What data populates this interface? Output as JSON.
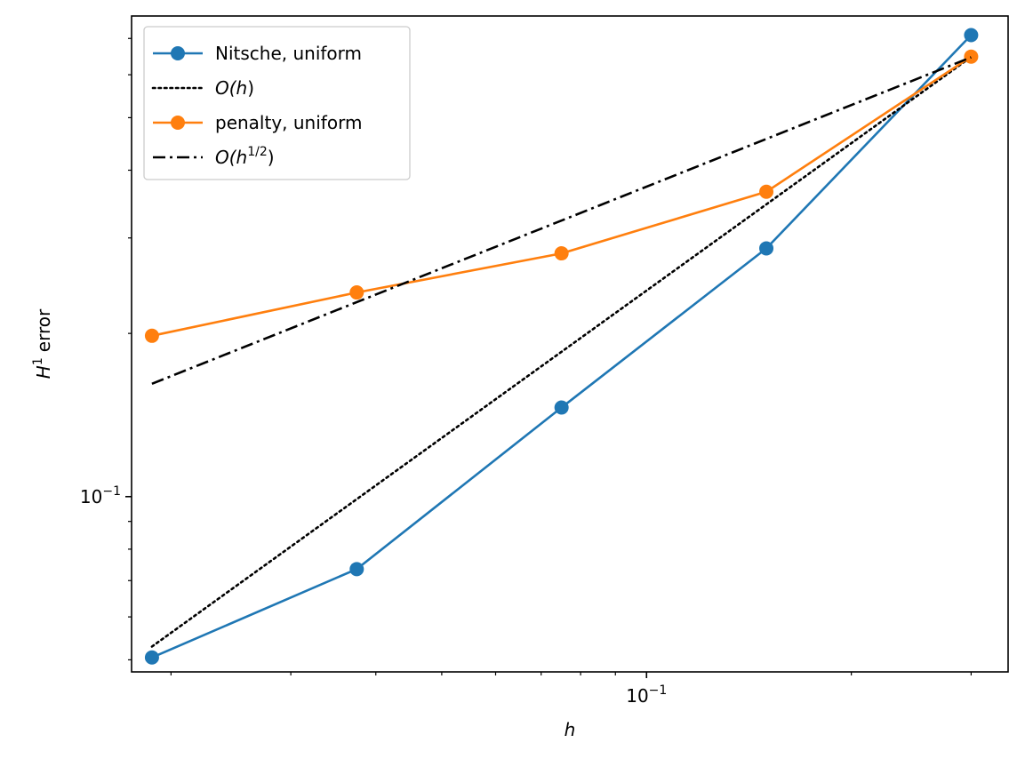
{
  "chart_data": {
    "type": "line",
    "xlabel": "h",
    "ylabel": "error",
    "ylabel_prefix": "H",
    "ylabel_sup": "1",
    "xscale": "log",
    "yscale": "log",
    "xlim": [
      0.0175,
      0.34
    ],
    "ylim": [
      0.0475,
      0.77
    ],
    "x_major_ticks": [
      {
        "value": 0.1,
        "base": "10",
        "exp": "−1"
      }
    ],
    "x_minor_ticks": [
      0.02,
      0.03,
      0.04,
      0.05,
      0.06,
      0.07,
      0.08,
      0.09,
      0.2,
      0.3
    ],
    "y_major_ticks": [
      {
        "value": 0.1,
        "base": "10",
        "exp": "−1"
      }
    ],
    "y_minor_ticks": [
      0.05,
      0.06,
      0.07,
      0.08,
      0.09,
      0.2,
      0.3,
      0.4,
      0.5,
      0.6,
      0.7
    ],
    "legend_position": "top-left",
    "grid": false,
    "series": [
      {
        "name": "Nitsche, uniform",
        "color": "#1f77b4",
        "style": "solid",
        "marker": "circle",
        "x": [
          0.01875,
          0.0375,
          0.075,
          0.15,
          0.3
        ],
        "y": [
          0.0505,
          0.0735,
          0.146,
          0.287,
          0.71
        ]
      },
      {
        "name": "O(h)",
        "legend_parts": [
          {
            "t": "O(",
            "i": true
          },
          {
            "t": "h",
            "i": true
          },
          {
            "t": ")",
            "i": false
          }
        ],
        "color": "#000000",
        "style": "dotted",
        "marker": "none",
        "x": [
          0.01875,
          0.3
        ],
        "y": [
          0.0529,
          0.647
        ]
      },
      {
        "name": "penalty, uniform",
        "color": "#ff7f0e",
        "style": "solid",
        "marker": "circle",
        "x": [
          0.01875,
          0.0375,
          0.075,
          0.15,
          0.3
        ],
        "y": [
          0.198,
          0.238,
          0.281,
          0.365,
          0.648
        ]
      },
      {
        "name": "O(h^1/2)",
        "legend_parts": [
          {
            "t": "O(",
            "i": true
          },
          {
            "t": "h",
            "i": true
          },
          {
            "t": "1/2",
            "sup": true
          },
          {
            "t": ")",
            "i": false
          }
        ],
        "color": "#000000",
        "style": "dashdot",
        "marker": "none",
        "x": [
          0.01875,
          0.3
        ],
        "y": [
          0.1615,
          0.646
        ]
      }
    ]
  }
}
